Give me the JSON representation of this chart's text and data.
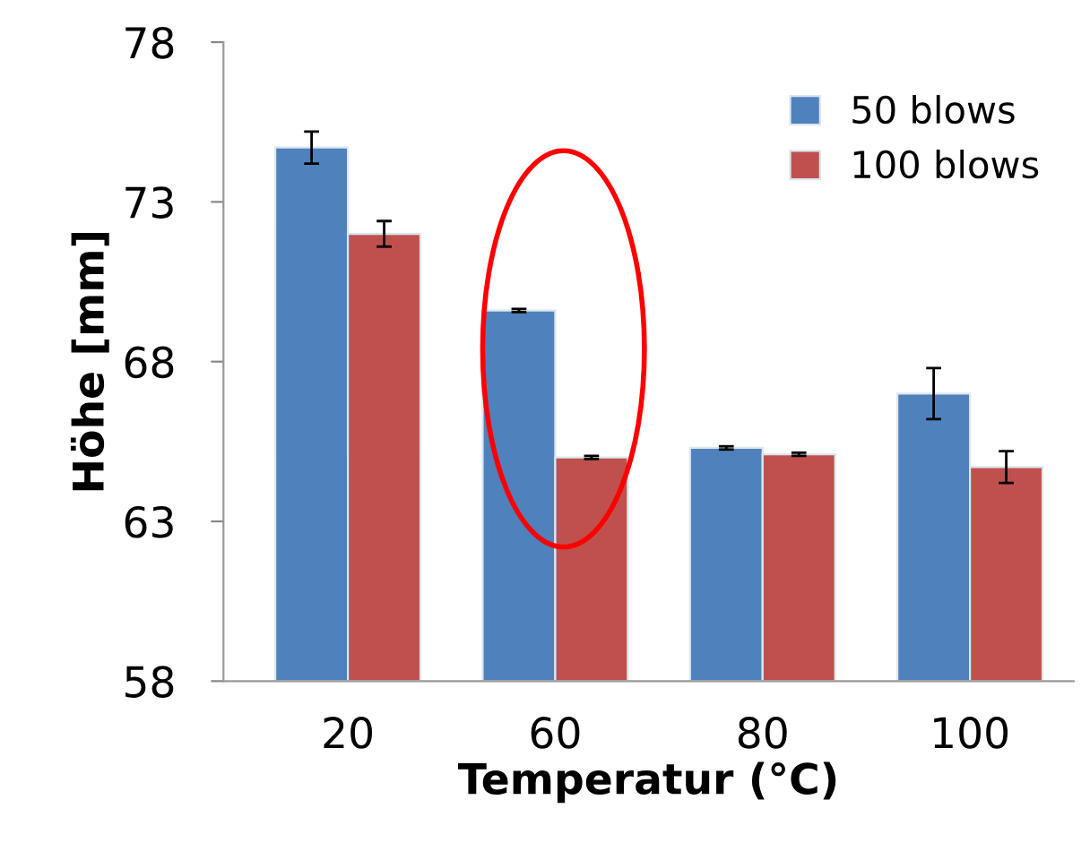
{
  "chart_data": {
    "type": "bar",
    "xlabel": "Temperatur (°C)",
    "ylabel": "Höhe [mm]",
    "categories": [
      "20",
      "60",
      "80",
      "100"
    ],
    "series": [
      {
        "name": "50 blows",
        "color": "#4f81bd",
        "values": [
          74.7,
          69.6,
          65.3,
          67.0
        ],
        "errors": [
          0.5,
          0.05,
          0.05,
          0.8
        ]
      },
      {
        "name": "100 blows",
        "color": "#c0504d",
        "values": [
          72.0,
          65.0,
          65.1,
          64.7
        ],
        "errors": [
          0.4,
          0.05,
          0.05,
          0.5
        ]
      }
    ],
    "ylim": [
      58,
      78
    ],
    "yticks": [
      58,
      63,
      68,
      73,
      78
    ],
    "grid": false,
    "legend": "top right"
  }
}
